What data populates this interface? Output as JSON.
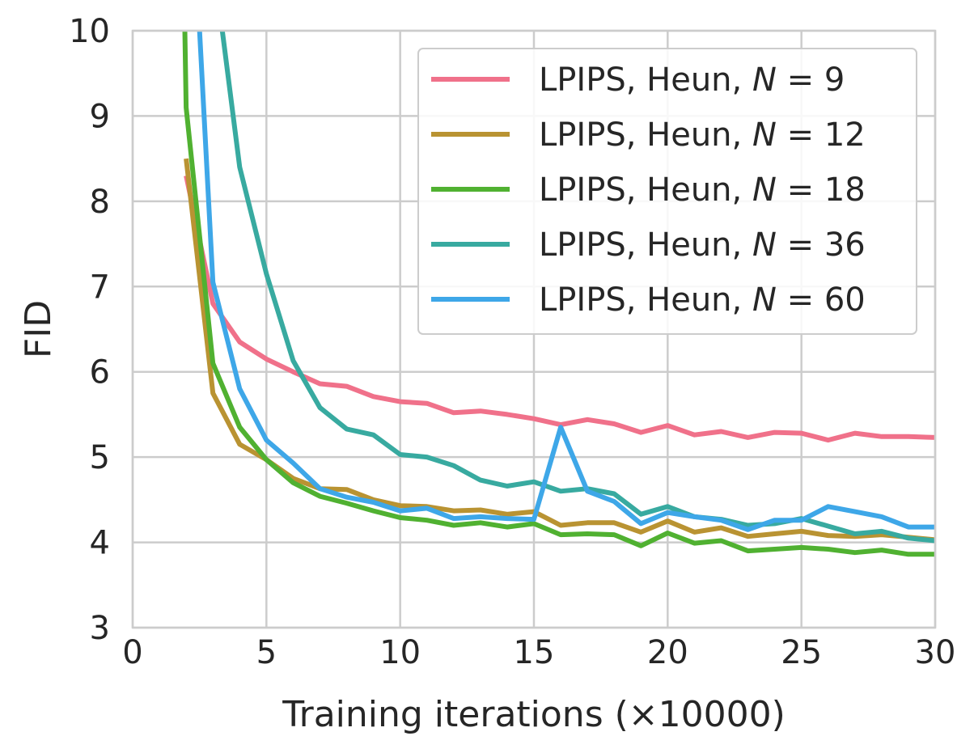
{
  "chart_data": {
    "type": "line",
    "xlabel": "Training iterations (×10000)",
    "ylabel": "FID",
    "xlim": [
      0,
      30
    ],
    "ylim": [
      3,
      10
    ],
    "xticks": [
      0,
      5,
      10,
      15,
      20,
      25,
      30
    ],
    "yticks": [
      3,
      4,
      5,
      6,
      7,
      8,
      9,
      10
    ],
    "grid": true,
    "legend_position": "top-right",
    "series": [
      {
        "name": "LPIPS, Heun, N = 9",
        "legend": {
          "prefix": "LPIPS, Heun, ",
          "var": "N",
          "eq": " = ",
          "num": "9"
        },
        "color": "#f0718a",
        "x": [
          2,
          3,
          4,
          5,
          6,
          7,
          8,
          9,
          10,
          11,
          12,
          13,
          14,
          15,
          16,
          17,
          18,
          19,
          20,
          21,
          22,
          23,
          24,
          25,
          26,
          27,
          28,
          29,
          30
        ],
        "y": [
          8.3,
          6.8,
          6.35,
          6.15,
          6.0,
          5.86,
          5.83,
          5.71,
          5.65,
          5.63,
          5.52,
          5.54,
          5.5,
          5.45,
          5.38,
          5.44,
          5.39,
          5.29,
          5.37,
          5.26,
          5.3,
          5.23,
          5.29,
          5.28,
          5.2,
          5.28,
          5.24,
          5.24,
          5.23
        ]
      },
      {
        "name": "LPIPS, Heun, N = 12",
        "legend": {
          "prefix": "LPIPS, Heun, ",
          "var": "N",
          "eq": " = ",
          "num": "12"
        },
        "color": "#b99332",
        "x": [
          2,
          3,
          4,
          5,
          6,
          7,
          8,
          9,
          10,
          11,
          12,
          13,
          14,
          15,
          16,
          17,
          18,
          19,
          20,
          21,
          22,
          23,
          24,
          25,
          26,
          27,
          28,
          29,
          30
        ],
        "y": [
          8.5,
          5.75,
          5.15,
          4.97,
          4.75,
          4.63,
          4.62,
          4.5,
          4.43,
          4.42,
          4.37,
          4.38,
          4.33,
          4.36,
          4.2,
          4.23,
          4.23,
          4.12,
          4.25,
          4.12,
          4.17,
          4.07,
          4.1,
          4.13,
          4.08,
          4.07,
          4.09,
          4.06,
          4.03
        ]
      },
      {
        "name": "LPIPS, Heun, N = 18",
        "legend": {
          "prefix": "LPIPS, Heun, ",
          "var": "N",
          "eq": " = ",
          "num": "18"
        },
        "color": "#50b131",
        "x": [
          1.95,
          2,
          3,
          4,
          5,
          6,
          7,
          8,
          9,
          10,
          11,
          12,
          13,
          14,
          15,
          16,
          17,
          18,
          19,
          20,
          21,
          22,
          23,
          24,
          25,
          26,
          27,
          28,
          29,
          30
        ],
        "y": [
          10.0,
          9.1,
          6.1,
          5.35,
          4.97,
          4.7,
          4.54,
          4.46,
          4.37,
          4.29,
          4.26,
          4.2,
          4.23,
          4.18,
          4.22,
          4.09,
          4.1,
          4.09,
          3.96,
          4.11,
          3.99,
          4.02,
          3.9,
          3.92,
          3.94,
          3.92,
          3.88,
          3.91,
          3.86,
          3.86
        ]
      },
      {
        "name": "LPIPS, Heun, N = 36",
        "legend": {
          "prefix": "LPIPS, Heun, ",
          "var": "N",
          "eq": " = ",
          "num": "36"
        },
        "color": "#38aaa0",
        "x": [
          3.35,
          4,
          5,
          6,
          7,
          8,
          9,
          10,
          11,
          12,
          13,
          14,
          15,
          16,
          17,
          18,
          19,
          20,
          21,
          22,
          23,
          24,
          25,
          26,
          27,
          28,
          29,
          30
        ],
        "y": [
          10.0,
          8.4,
          7.15,
          6.13,
          5.58,
          5.33,
          5.26,
          5.03,
          5.0,
          4.9,
          4.73,
          4.66,
          4.71,
          4.6,
          4.63,
          4.57,
          4.33,
          4.42,
          4.3,
          4.27,
          4.2,
          4.22,
          4.28,
          4.19,
          4.1,
          4.13,
          4.05,
          4.02
        ]
      },
      {
        "name": "LPIPS, Heun, N = 60",
        "legend": {
          "prefix": "LPIPS, Heun, ",
          "var": "N",
          "eq": " = ",
          "num": "60"
        },
        "color": "#3ea7e8",
        "x": [
          2.5,
          3,
          4,
          5,
          6,
          7,
          8,
          9,
          10,
          11,
          12,
          13,
          14,
          15,
          16,
          17,
          18,
          19,
          20,
          21,
          22,
          23,
          24,
          25,
          26,
          27,
          28,
          29,
          30
        ],
        "y": [
          10.0,
          7.05,
          5.8,
          5.2,
          4.93,
          4.63,
          4.53,
          4.47,
          4.37,
          4.4,
          4.28,
          4.3,
          4.28,
          4.27,
          5.35,
          4.6,
          4.48,
          4.22,
          4.35,
          4.3,
          4.26,
          4.15,
          4.26,
          4.26,
          4.42,
          4.36,
          4.3,
          4.18,
          4.18
        ]
      }
    ]
  }
}
